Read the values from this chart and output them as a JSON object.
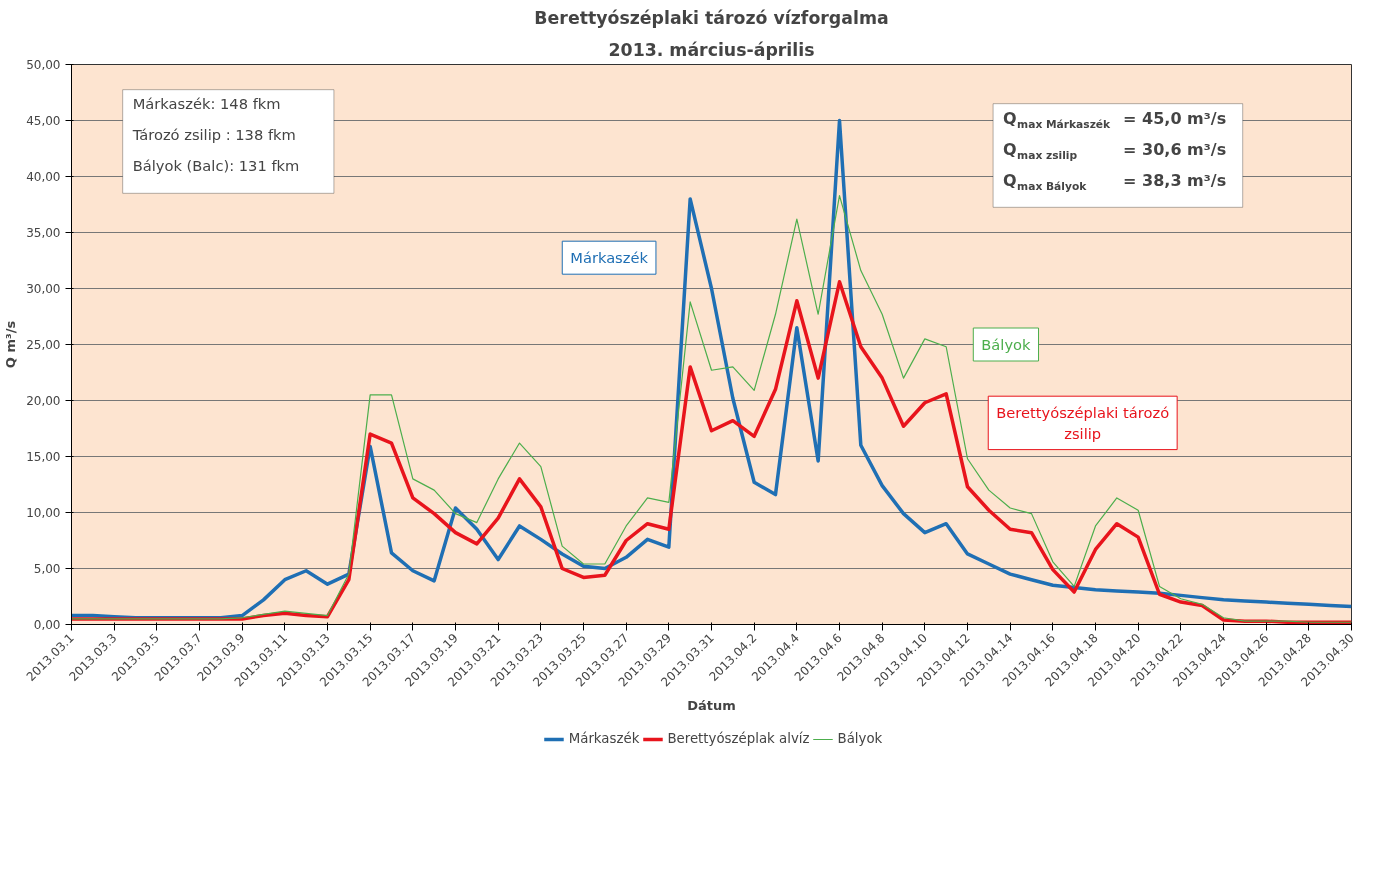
{
  "chart_data": {
    "type": "line",
    "title": "Berettyószéplaki tározó vízforgalma",
    "subtitle": "2013. március-április",
    "xlabel": "Dátum",
    "ylabel": "Q m³/s",
    "x": [
      "2013-03-01",
      "2013-03-02",
      "2013-03-03",
      "2013-03-04",
      "2013-03-05",
      "2013-03-06",
      "2013-03-07",
      "2013-03-08",
      "2013-03-09",
      "2013-03-10",
      "2013-03-11",
      "2013-03-12",
      "2013-03-13",
      "2013-03-14",
      "2013-03-15",
      "2013-03-16",
      "2013-03-17",
      "2013-03-18",
      "2013-03-19",
      "2013-03-20",
      "2013-03-21",
      "2013-03-22",
      "2013-03-23",
      "2013-03-24",
      "2013-03-25",
      "2013-03-26",
      "2013-03-27",
      "2013-03-28",
      "2013-03-29",
      "2013-03-30",
      "2013-03-31",
      "2013-04-01",
      "2013-04-02",
      "2013-04-03",
      "2013-04-04",
      "2013-04-05",
      "2013-04-06",
      "2013-04-07",
      "2013-04-08",
      "2013-04-09",
      "2013-04-10",
      "2013-04-11",
      "2013-04-12",
      "2013-04-13",
      "2013-04-14",
      "2013-04-15",
      "2013-04-16",
      "2013-04-17",
      "2013-04-18",
      "2013-04-19",
      "2013-04-20",
      "2013-04-21",
      "2013-04-22",
      "2013-04-23",
      "2013-04-24",
      "2013-04-25",
      "2013-04-26",
      "2013-04-27",
      "2013-04-28",
      "2013-04-29",
      "2013-04-30"
    ],
    "series": [
      {
        "name": "Márkaszék",
        "color": "#1f6fb4",
        "values": [
          0.8,
          0.8,
          0.7,
          0.6,
          0.6,
          0.6,
          0.6,
          0.6,
          0.8,
          2.2,
          4.0,
          4.8,
          3.6,
          4.5,
          15.9,
          6.4,
          4.8,
          3.9,
          10.4,
          8.5,
          5.8,
          8.8,
          7.6,
          6.3,
          5.2,
          5.0,
          6.0,
          7.6,
          6.9,
          38.0,
          30.0,
          20.2,
          12.7,
          11.6,
          26.5,
          14.6,
          45.0,
          16.0,
          12.4,
          9.9,
          8.2,
          9.0,
          6.3,
          5.4,
          4.5,
          4.0,
          3.5,
          3.3,
          3.1,
          3.0,
          2.9,
          2.8,
          2.6,
          2.4,
          2.2,
          2.1,
          2.0,
          1.9,
          1.8,
          1.7,
          1.6
        ]
      },
      {
        "name": "Berettyószéplak alvíz",
        "color": "#e8141c",
        "values": [
          0.5,
          0.5,
          0.5,
          0.5,
          0.5,
          0.5,
          0.5,
          0.5,
          0.5,
          0.8,
          1.0,
          0.8,
          0.7,
          4.0,
          17.0,
          16.2,
          11.3,
          9.9,
          8.2,
          7.2,
          9.5,
          13.0,
          10.5,
          5.0,
          4.2,
          4.4,
          7.5,
          9.0,
          8.5,
          23.0,
          17.3,
          18.2,
          16.8,
          21.0,
          28.9,
          22.0,
          30.6,
          24.8,
          22.0,
          17.7,
          19.8,
          20.6,
          12.3,
          10.2,
          8.5,
          8.2,
          4.9,
          2.9,
          6.7,
          9.0,
          7.8,
          2.7,
          2.0,
          1.7,
          0.4,
          0.3,
          0.3,
          0.2,
          0.2,
          0.2,
          0.2
        ]
      },
      {
        "name": "Bályok",
        "color": "#4cae4c",
        "values": [
          0.5,
          0.5,
          0.5,
          0.5,
          0.5,
          0.5,
          0.5,
          0.5,
          0.6,
          0.9,
          1.2,
          1.0,
          0.8,
          4.5,
          20.5,
          20.5,
          13.0,
          12.0,
          9.9,
          9.1,
          13.0,
          16.2,
          14.1,
          7.0,
          5.4,
          5.4,
          8.8,
          11.3,
          10.9,
          28.8,
          22.7,
          23.0,
          20.9,
          27.7,
          36.2,
          27.7,
          38.3,
          31.6,
          27.7,
          22.0,
          25.5,
          24.8,
          14.8,
          12.0,
          10.4,
          9.9,
          5.6,
          3.4,
          8.8,
          11.3,
          10.2,
          3.4,
          2.3,
          1.8,
          0.6,
          0.3,
          0.3,
          0.3,
          0.2,
          0.2,
          0.2
        ]
      }
    ],
    "xlim": [
      "2013-03-01",
      "2013-04-30"
    ],
    "xticks": [
      {
        "value": "2013-03-01",
        "label": "2013.03.1"
      },
      {
        "value": "2013-03-03",
        "label": "2013.03.3"
      },
      {
        "value": "2013-03-05",
        "label": "2013.03.5"
      },
      {
        "value": "2013-03-07",
        "label": "2013.03.7"
      },
      {
        "value": "2013-03-09",
        "label": "2013.03.9"
      },
      {
        "value": "2013-03-11",
        "label": "2013.03.11"
      },
      {
        "value": "2013-03-13",
        "label": "2013.03.13"
      },
      {
        "value": "2013-03-15",
        "label": "2013.03.15"
      },
      {
        "value": "2013-03-17",
        "label": "2013.03.17"
      },
      {
        "value": "2013-03-19",
        "label": "2013.03.19"
      },
      {
        "value": "2013-03-21",
        "label": "2013.03.21"
      },
      {
        "value": "2013-03-23",
        "label": "2013.03.23"
      },
      {
        "value": "2013-03-25",
        "label": "2013.03.25"
      },
      {
        "value": "2013-03-27",
        "label": "2013.03.27"
      },
      {
        "value": "2013-03-29",
        "label": "2013.03.29"
      },
      {
        "value": "2013-03-31",
        "label": "2013.03.31"
      },
      {
        "value": "2013-04-02",
        "label": "2013.04.2"
      },
      {
        "value": "2013-04-04",
        "label": "2013.04.4"
      },
      {
        "value": "2013-04-06",
        "label": "2013.04.6"
      },
      {
        "value": "2013-04-08",
        "label": "2013.04.8"
      },
      {
        "value": "2013-04-10",
        "label": "2013.04.10"
      },
      {
        "value": "2013-04-12",
        "label": "2013.04.12"
      },
      {
        "value": "2013-04-14",
        "label": "2013.04.14"
      },
      {
        "value": "2013-04-16",
        "label": "2013.04.16"
      },
      {
        "value": "2013-04-18",
        "label": "2013.04.18"
      },
      {
        "value": "2013-04-20",
        "label": "2013.04.20"
      },
      {
        "value": "2013-04-22",
        "label": "2013.04.22"
      },
      {
        "value": "2013-04-24",
        "label": "2013.04.24"
      },
      {
        "value": "2013-04-26",
        "label": "2013.04.26"
      },
      {
        "value": "2013-04-28",
        "label": "2013.04.28"
      },
      {
        "value": "2013-04-30",
        "label": "2013.04.30"
      }
    ],
    "ylim": [
      0,
      50
    ],
    "yticks": [
      {
        "value": 0,
        "label": "0,00"
      },
      {
        "value": 5,
        "label": "5,00"
      },
      {
        "value": 10,
        "label": "10,00"
      },
      {
        "value": 15,
        "label": "15,00"
      },
      {
        "value": 20,
        "label": "20,00"
      },
      {
        "value": 25,
        "label": "25,00"
      },
      {
        "value": 30,
        "label": "30,00"
      },
      {
        "value": 35,
        "label": "35,00"
      },
      {
        "value": 40,
        "label": "40,00"
      },
      {
        "value": 45,
        "label": "45,00"
      },
      {
        "value": 50,
        "label": "50,00"
      }
    ],
    "grid": "y",
    "legend": "bottom",
    "marker": "none",
    "line_style": "solid",
    "annotations": [
      "Márkaszék:     148  fkm\nTározó zsilip : 138 fkm\nBályok (Balc): 131 fkm",
      "Q$_{max Márkaszék}$ = 45,0 m³/s\nQ$_{max zsilip}$ = 30,6 m³/s\nQ$_{max Bályok}$ = 38,3 m³/s",
      "Márkaszék",
      "Berettyószéplaki tározó\nzsilip",
      "Bályok"
    ]
  }
}
